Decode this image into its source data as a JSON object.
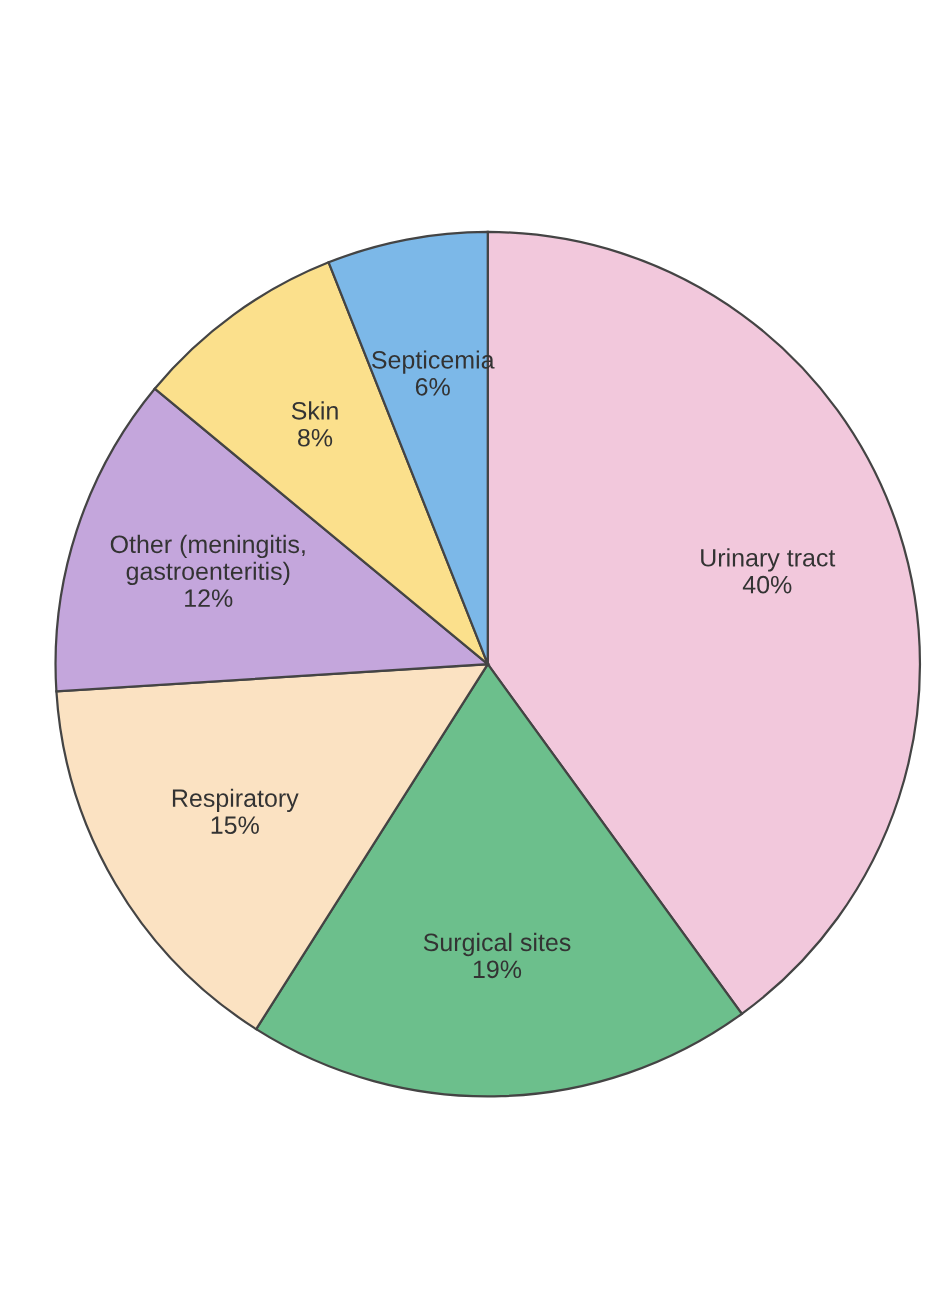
{
  "chart_data": {
    "type": "pie",
    "categories": [
      "Urinary tract",
      "Surgical sites",
      "Respiratory",
      "Other (meningitis,\ngastroenteritis)",
      "Skin",
      "Septicemia"
    ],
    "values": [
      40,
      19,
      15,
      12,
      8,
      6
    ],
    "colors": [
      "#f2c8dc",
      "#6cbf8c",
      "#fbe2c2",
      "#c4a6dc",
      "#fbe08c",
      "#7cb8e8"
    ],
    "value_labels": [
      "40%",
      "19%",
      "15%",
      "12%",
      "8%",
      "6%"
    ]
  }
}
